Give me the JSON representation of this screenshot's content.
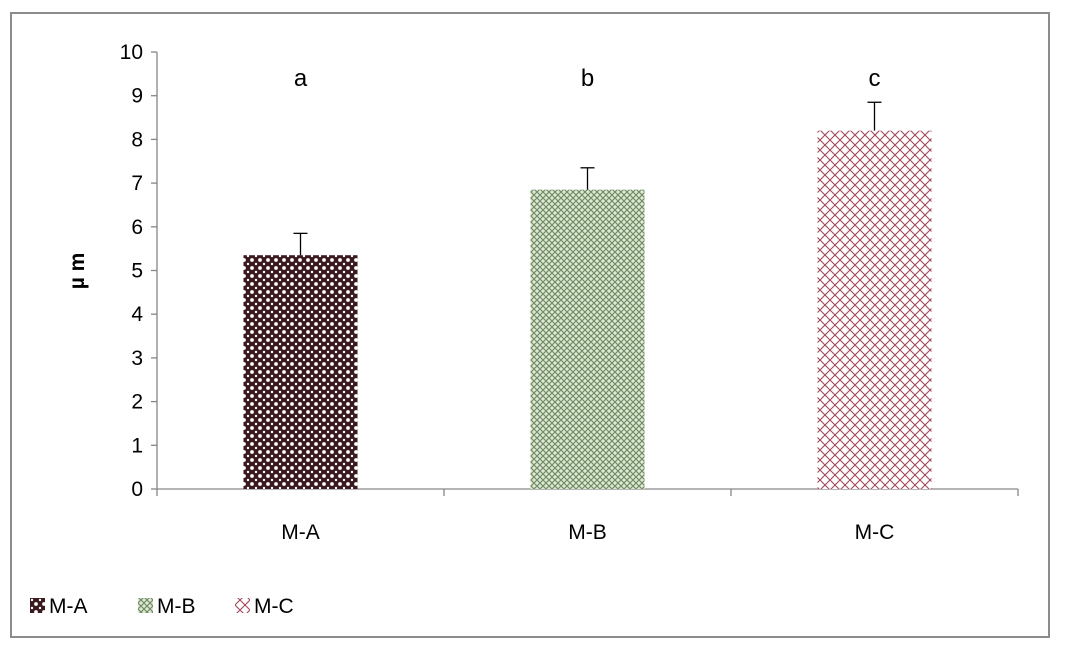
{
  "chart_data": {
    "type": "bar",
    "categories": [
      "M-A",
      "M-B",
      "M-C"
    ],
    "values": [
      5.35,
      6.85,
      8.2
    ],
    "error_bars": [
      0.5,
      0.5,
      0.65
    ],
    "significance_labels": [
      "a",
      "b",
      "c"
    ],
    "title": "",
    "xlabel": "",
    "ylabel": "µ m",
    "ylim": [
      0,
      10
    ],
    "yticks": [
      "0",
      "1",
      "2",
      "3",
      "4",
      "5",
      "6",
      "7",
      "8",
      "9",
      "10"
    ],
    "grid": false,
    "legend_position": "bottom-left",
    "legend": [
      "M-A",
      "M-B",
      "M-C"
    ],
    "colors": [
      "#3a1a1e",
      "#7d9a6e",
      "#a0485a"
    ]
  }
}
